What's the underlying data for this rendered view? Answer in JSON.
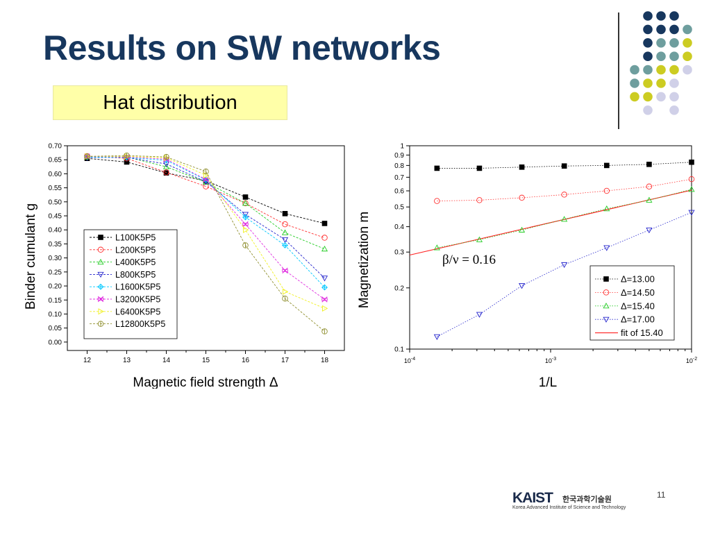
{
  "slide": {
    "title": "Results on SW networks",
    "subtitle": "Hat distribution",
    "page_number": "11"
  },
  "logo": {
    "name": "KAIST",
    "korean": "한국과학기술원",
    "english": "Korea Advanced Institute of Science and Technology"
  },
  "decor_dots_colors": [
    "#17375e",
    "#6e9e9e",
    "#cccc22",
    "#d0d0e8"
  ],
  "chart_data": [
    {
      "type": "line",
      "xlabel": "Magnetic field strength Δ",
      "ylabel": "Binder cumulant g",
      "xlim": [
        11.5,
        18.5
      ],
      "ylim": [
        -0.03,
        0.7
      ],
      "x": [
        12,
        13,
        14,
        15,
        16,
        17,
        18
      ],
      "x_ticks": [
        "12",
        "13",
        "14",
        "15",
        "16",
        "17",
        "18"
      ],
      "y_ticks": [
        "0.00",
        "0.05",
        "0.10",
        "0.15",
        "0.20",
        "0.25",
        "0.30",
        "0.35",
        "0.40",
        "0.45",
        "0.50",
        "0.55",
        "0.60",
        "0.65",
        "0.70"
      ],
      "grid": false,
      "legend_position": "center-left",
      "series": [
        {
          "name": "L100K5P5",
          "color": "#000000",
          "marker": "square-filled",
          "values": [
            0.655,
            0.642,
            0.603,
            0.575,
            0.517,
            0.458,
            0.423
          ]
        },
        {
          "name": "L200K5P5",
          "color": "#ff3030",
          "marker": "circle",
          "values": [
            0.663,
            0.655,
            0.605,
            0.555,
            0.495,
            0.42,
            0.372
          ]
        },
        {
          "name": "L400K5P5",
          "color": "#22cc22",
          "marker": "triangle-up",
          "values": [
            0.66,
            0.66,
            0.625,
            0.57,
            0.495,
            0.39,
            0.332
          ]
        },
        {
          "name": "L800K5P5",
          "color": "#2222cc",
          "marker": "triangle-down",
          "values": [
            0.658,
            0.658,
            0.635,
            0.572,
            0.455,
            0.365,
            0.228
          ]
        },
        {
          "name": "L1600K5P5",
          "color": "#00c8ff",
          "marker": "diamond-cross",
          "values": [
            0.66,
            0.658,
            0.648,
            0.578,
            0.445,
            0.345,
            0.195
          ]
        },
        {
          "name": "L3200K5P5",
          "color": "#e030e0",
          "marker": "x-box",
          "values": [
            0.662,
            0.66,
            0.652,
            0.58,
            0.42,
            0.255,
            0.152
          ]
        },
        {
          "name": "L6400K5P5",
          "color": "#f0f020",
          "marker": "triangle-right",
          "values": [
            0.662,
            0.662,
            0.657,
            0.595,
            0.4,
            0.18,
            0.12
          ]
        },
        {
          "name": "L12800K5P5",
          "color": "#909030",
          "marker": "circle-bar",
          "values": [
            0.662,
            0.665,
            0.66,
            0.608,
            0.345,
            0.155,
            0.038
          ]
        }
      ]
    },
    {
      "type": "scatter",
      "xlabel": "1/L",
      "ylabel": "Magnetization m",
      "x_scale": "log",
      "y_scale": "log",
      "xlim": [
        0.0001,
        0.01
      ],
      "ylim": [
        0.1,
        1
      ],
      "x_ticks": [
        {
          "value": 0.0001,
          "base": "10",
          "exp": "-4"
        },
        {
          "value": 0.001,
          "base": "10",
          "exp": "-3"
        },
        {
          "value": 0.01,
          "base": "10",
          "exp": "-2"
        }
      ],
      "y_ticks": [
        {
          "value": 0.1,
          "label": "0.1"
        },
        {
          "value": 0.2,
          "label": "0.2"
        },
        {
          "value": 0.3,
          "label": "0.3"
        },
        {
          "value": 0.4,
          "label": "0.4"
        },
        {
          "value": 0.5,
          "label": "0.5"
        },
        {
          "value": 0.6,
          "label": "0.6"
        },
        {
          "value": 0.7,
          "label": "0.7"
        },
        {
          "value": 0.8,
          "label": "0.8"
        },
        {
          "value": 0.9,
          "label": "0.9"
        },
        {
          "value": 1,
          "label": "1"
        }
      ],
      "x": [
        0.00015625,
        0.0003125,
        0.000625,
        0.00125,
        0.0025,
        0.005,
        0.01
      ],
      "annotation": "β/ν = 0.16",
      "grid": false,
      "legend_position": "bottom-right",
      "series": [
        {
          "name": "Δ=13.00",
          "color": "#000000",
          "marker": "square-filled",
          "values": [
            0.775,
            0.775,
            0.785,
            0.795,
            0.8,
            0.81,
            0.83
          ]
        },
        {
          "name": "Δ=14.50",
          "color": "#ff3030",
          "marker": "circle",
          "values": [
            0.535,
            0.54,
            0.555,
            0.575,
            0.6,
            0.63,
            0.685
          ]
        },
        {
          "name": "Δ=15.40",
          "color": "#22cc22",
          "marker": "triangle-up",
          "values": [
            0.315,
            0.345,
            0.385,
            0.435,
            0.49,
            0.54,
            0.61
          ]
        },
        {
          "name": "Δ=17.00",
          "color": "#2222cc",
          "marker": "triangle-down",
          "values": [
            0.115,
            0.148,
            0.205,
            0.26,
            0.315,
            0.385,
            0.47
          ]
        }
      ],
      "fit": {
        "name": "fit of 15.40",
        "color": "#ff2020",
        "x": [
          0.0001,
          0.01
        ],
        "values": [
          0.29,
          0.605
        ]
      }
    }
  ]
}
